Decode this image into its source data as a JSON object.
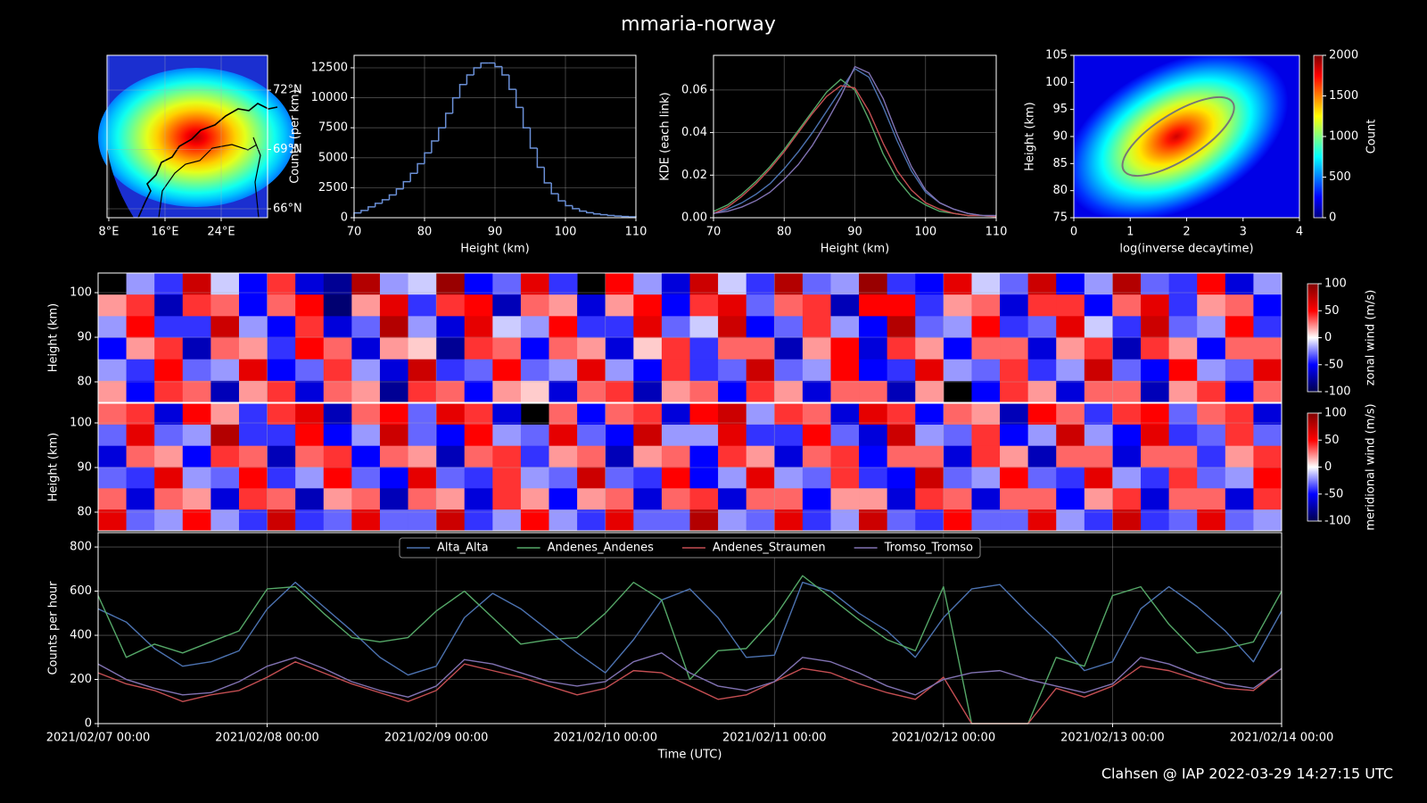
{
  "title": "mmaria-norway",
  "footer": "Clahsen @ IAP 2022-03-29 14:27:15 UTC",
  "chart_data": [
    {
      "type": "map",
      "xlim": [
        7.75,
        30.6
      ],
      "ylim": [
        65.55,
        73.76
      ],
      "grid": true,
      "xticks": [
        {
          "value": 8,
          "label": "8°E"
        },
        {
          "value": 16,
          "label": "16°E"
        },
        {
          "value": 24,
          "label": "24°E"
        }
      ],
      "yticks": [
        {
          "value": 72,
          "label": "72°N"
        },
        {
          "value": 69,
          "label": "69°N"
        },
        {
          "value": 66,
          "label": "66°N"
        }
      ]
    },
    {
      "type": "histogram",
      "xlabel": "Height (km)",
      "ylabel": "Counts (per km)",
      "color": "#6a8fd6",
      "grid": true,
      "bins": [
        70,
        71,
        72,
        73,
        74,
        75,
        76,
        77,
        78,
        79,
        80,
        81,
        82,
        83,
        84,
        85,
        86,
        87,
        88,
        89,
        90,
        91,
        92,
        93,
        94,
        95,
        96,
        97,
        98,
        99,
        100,
        101,
        102,
        103,
        104,
        105,
        106,
        107,
        108,
        109,
        110
      ],
      "values": [
        400,
        600,
        900,
        1200,
        1500,
        1900,
        2400,
        3000,
        3700,
        4500,
        5400,
        6400,
        7500,
        8700,
        10000,
        11100,
        11900,
        12500,
        12900,
        12900,
        12600,
        11900,
        10700,
        9200,
        7500,
        5800,
        4200,
        2900,
        2000,
        1400,
        1000,
        750,
        550,
        420,
        320,
        250,
        190,
        140,
        100,
        70
      ],
      "xlim": [
        70,
        110
      ],
      "xticks": [
        70,
        80,
        90,
        100,
        110
      ],
      "ylim": [
        0,
        13540
      ],
      "yticks": [
        0,
        2500,
        5000,
        7500,
        10000,
        12500
      ]
    },
    {
      "type": "line",
      "xlabel": "Height (km)",
      "ylabel": "KDE (each link)",
      "grid": true,
      "x": [
        70,
        72,
        74,
        76,
        78,
        80,
        82,
        84,
        86,
        88,
        90,
        92,
        94,
        96,
        98,
        100,
        102,
        104,
        106,
        108,
        110
      ],
      "series": [
        {
          "color": "#4c72b0",
          "values": [
            0.002,
            0.004,
            0.007,
            0.011,
            0.016,
            0.023,
            0.031,
            0.04,
            0.05,
            0.06,
            0.07,
            0.066,
            0.052,
            0.036,
            0.022,
            0.012,
            0.007,
            0.004,
            0.002,
            0.001,
            0.001
          ]
        },
        {
          "color": "#55a868",
          "values": [
            0.003,
            0.006,
            0.011,
            0.017,
            0.024,
            0.032,
            0.041,
            0.05,
            0.059,
            0.065,
            0.06,
            0.046,
            0.03,
            0.018,
            0.01,
            0.006,
            0.003,
            0.002,
            0.001,
            0.001,
            0.0005
          ]
        },
        {
          "color": "#c44e52",
          "values": [
            0.002,
            0.005,
            0.01,
            0.016,
            0.023,
            0.031,
            0.04,
            0.049,
            0.057,
            0.062,
            0.061,
            0.05,
            0.035,
            0.022,
            0.013,
            0.007,
            0.004,
            0.002,
            0.001,
            0.001,
            0.0005
          ]
        },
        {
          "color": "#8172b2",
          "values": [
            0.002,
            0.003,
            0.005,
            0.008,
            0.012,
            0.018,
            0.025,
            0.034,
            0.045,
            0.057,
            0.071,
            0.068,
            0.056,
            0.039,
            0.024,
            0.013,
            0.007,
            0.004,
            0.002,
            0.001,
            0.001
          ]
        }
      ],
      "xlim": [
        70,
        110
      ],
      "xticks": [
        70,
        80,
        90,
        100,
        110
      ],
      "ylim": [
        0,
        0.0763
      ],
      "yticks": [
        {
          "value": 0,
          "label": "0.00"
        },
        0.02,
        0.04,
        0.06
      ]
    },
    {
      "type": "hist2d",
      "xlabel": "log(inverse decaytime)",
      "ylabel": "Height (km)",
      "xlim": [
        0,
        4
      ],
      "xticks": [
        0,
        1,
        2,
        3,
        4
      ],
      "ylim": [
        75,
        105
      ],
      "yticks": [
        75,
        80,
        85,
        90,
        95,
        100,
        105
      ],
      "colorbar": {
        "label": "Count",
        "cmap": "jet",
        "lim": [
          0,
          2000
        ],
        "ticks": [
          0,
          500,
          1000,
          1500,
          2000
        ]
      }
    },
    {
      "type": "heatmap",
      "ylabel": "Height (km)",
      "grid": true,
      "xlim": [
        "2021/02/07 00:00",
        "2021/02/14 00:00"
      ],
      "ylim": [
        75.4,
        104.4
      ],
      "yticks": [
        80,
        90,
        100
      ],
      "colorbar": {
        "label": "zonal wind (m/s)",
        "cmap": "seismic",
        "lim": [
          -100,
          100
        ],
        "ticks": [
          -100,
          -50,
          0,
          50,
          100
        ]
      },
      "values": [
        [
          null,
          -20,
          -40,
          70,
          -10,
          -50,
          40,
          -60,
          -80,
          80,
          -20,
          -10,
          90,
          -50,
          -30,
          60,
          -40,
          null,
          50,
          -20,
          -60,
          70,
          -10,
          -40,
          80,
          -30,
          -20,
          90,
          -40,
          -50,
          60,
          -10,
          -30,
          70,
          -50,
          -20,
          80,
          -30,
          -40,
          50,
          -60,
          -20
        ],
        [
          20,
          40,
          -70,
          40,
          30,
          -50,
          30,
          50,
          -90,
          20,
          60,
          -40,
          40,
          50,
          -70,
          30,
          20,
          -60,
          20,
          50,
          -50,
          40,
          60,
          -30,
          30,
          40,
          -70,
          50,
          50,
          -40,
          20,
          30,
          -60,
          40,
          40,
          -50,
          30,
          60,
          -40,
          20,
          30,
          -50
        ],
        [
          -20,
          50,
          -40,
          -40,
          70,
          -20,
          -50,
          40,
          -60,
          -30,
          80,
          -20,
          -60,
          60,
          -10,
          -20,
          50,
          -40,
          -40,
          60,
          -30,
          -10,
          70,
          -50,
          -30,
          40,
          -20,
          -50,
          80,
          -30,
          -20,
          50,
          -40,
          -30,
          60,
          -10,
          -40,
          70,
          -30,
          -20,
          50,
          -40
        ],
        [
          -50,
          20,
          40,
          -70,
          30,
          20,
          -40,
          50,
          30,
          -60,
          20,
          10,
          -80,
          40,
          30,
          -50,
          30,
          20,
          -60,
          10,
          40,
          -40,
          30,
          30,
          -70,
          20,
          50,
          -60,
          40,
          20,
          -50,
          30,
          30,
          -60,
          20,
          40,
          -70,
          40,
          20,
          -50,
          30,
          30
        ],
        [
          -20,
          -40,
          50,
          -30,
          -20,
          60,
          -50,
          -30,
          40,
          -20,
          -60,
          70,
          -40,
          -30,
          50,
          -30,
          -20,
          60,
          -20,
          -50,
          40,
          -40,
          -30,
          70,
          -30,
          -20,
          50,
          -50,
          -40,
          60,
          -20,
          -30,
          40,
          -40,
          -20,
          70,
          -30,
          -50,
          50,
          -20,
          -30,
          60
        ],
        [
          20,
          -50,
          40,
          30,
          -70,
          20,
          40,
          -60,
          30,
          20,
          -80,
          40,
          30,
          -50,
          20,
          10,
          -60,
          30,
          40,
          -70,
          20,
          30,
          -50,
          40,
          20,
          -60,
          30,
          30,
          -70,
          20,
          null,
          -50,
          40,
          20,
          -60,
          30,
          30,
          -70,
          20,
          40,
          -50,
          30
        ]
      ]
    },
    {
      "type": "heatmap",
      "ylabel": "Height (km)",
      "grid": true,
      "xlim": [
        "2021/02/07 00:00",
        "2021/02/14 00:00"
      ],
      "ylim": [
        75.8,
        104.4
      ],
      "yticks": [
        80,
        90,
        100
      ],
      "colorbar": {
        "label": "meridional wind (m/s)",
        "cmap": "seismic",
        "lim": [
          -100,
          100
        ],
        "ticks": [
          -100,
          -50,
          0,
          50,
          100
        ]
      },
      "values": [
        [
          30,
          40,
          -60,
          50,
          20,
          -40,
          40,
          60,
          -70,
          30,
          50,
          -30,
          60,
          40,
          -60,
          null,
          30,
          -50,
          30,
          40,
          -60,
          50,
          70,
          -20,
          40,
          30,
          -60,
          60,
          40,
          -50,
          30,
          20,
          -70,
          50,
          30,
          -40,
          40,
          50,
          -30,
          30,
          40,
          -60
        ],
        [
          -30,
          60,
          -30,
          -20,
          80,
          -40,
          -40,
          50,
          -50,
          -20,
          70,
          -30,
          -50,
          50,
          -20,
          -30,
          60,
          -30,
          -50,
          70,
          -20,
          -20,
          60,
          -40,
          -40,
          50,
          -30,
          -60,
          70,
          -20,
          -30,
          40,
          -50,
          -20,
          70,
          -20,
          -50,
          60,
          -40,
          -30,
          40,
          -30
        ],
        [
          -60,
          30,
          20,
          -50,
          40,
          30,
          -70,
          30,
          40,
          -50,
          30,
          20,
          -70,
          30,
          40,
          -40,
          20,
          30,
          -70,
          20,
          30,
          -50,
          40,
          20,
          -60,
          30,
          40,
          -50,
          30,
          30,
          -60,
          40,
          20,
          -70,
          30,
          30,
          -60,
          30,
          30,
          -40,
          20,
          40
        ],
        [
          -30,
          -40,
          60,
          -20,
          -30,
          50,
          -40,
          -20,
          50,
          -30,
          -50,
          60,
          -30,
          -40,
          40,
          -20,
          -30,
          70,
          -30,
          -40,
          50,
          -50,
          -20,
          60,
          -20,
          -30,
          40,
          -40,
          -50,
          70,
          -30,
          -20,
          50,
          -30,
          -40,
          60,
          -20,
          -40,
          40,
          -30,
          -20,
          50
        ],
        [
          30,
          -60,
          30,
          20,
          -60,
          40,
          30,
          -70,
          20,
          30,
          -70,
          30,
          20,
          -60,
          40,
          20,
          -50,
          20,
          30,
          -60,
          30,
          40,
          -60,
          30,
          30,
          -50,
          20,
          20,
          -60,
          40,
          30,
          -60,
          30,
          30,
          -50,
          20,
          40,
          -60,
          30,
          30,
          -60,
          40
        ],
        [
          60,
          -30,
          -20,
          50,
          -20,
          -40,
          70,
          -40,
          -30,
          60,
          -30,
          -30,
          70,
          -40,
          -20,
          50,
          -20,
          -40,
          60,
          -30,
          -30,
          80,
          -20,
          -30,
          60,
          -40,
          -20,
          70,
          -30,
          -40,
          50,
          -30,
          -30,
          60,
          -20,
          -40,
          70,
          -40,
          -30,
          60,
          -30,
          -20
        ]
      ]
    },
    {
      "type": "line",
      "xlabel": "Time (UTC)",
      "ylabel": "Counts per hour",
      "grid": true,
      "legend": "upper center",
      "x": [
        "2021/02/07 00:00",
        "2021/02/07 04:00",
        "2021/02/07 08:00",
        "2021/02/07 12:00",
        "2021/02/07 16:00",
        "2021/02/07 20:00",
        "2021/02/08 00:00",
        "2021/02/08 04:00",
        "2021/02/08 08:00",
        "2021/02/08 12:00",
        "2021/02/08 16:00",
        "2021/02/08 20:00",
        "2021/02/09 00:00",
        "2021/02/09 04:00",
        "2021/02/09 08:00",
        "2021/02/09 12:00",
        "2021/02/09 16:00",
        "2021/02/09 20:00",
        "2021/02/10 00:00",
        "2021/02/10 04:00",
        "2021/02/10 08:00",
        "2021/02/10 12:00",
        "2021/02/10 16:00",
        "2021/02/10 20:00",
        "2021/02/11 00:00",
        "2021/02/11 04:00",
        "2021/02/11 08:00",
        "2021/02/11 12:00",
        "2021/02/11 16:00",
        "2021/02/11 20:00",
        "2021/02/12 00:00",
        "2021/02/12 04:00",
        "2021/02/12 08:00",
        "2021/02/12 12:00",
        "2021/02/12 16:00",
        "2021/02/12 20:00",
        "2021/02/13 00:00",
        "2021/02/13 04:00",
        "2021/02/13 08:00",
        "2021/02/13 12:00",
        "2021/02/13 16:00",
        "2021/02/13 20:00",
        "2021/02/14 00:00"
      ],
      "series": [
        {
          "name": "Alta_Alta",
          "color": "#4c72b0",
          "values": [
            520,
            460,
            340,
            260,
            280,
            330,
            520,
            640,
            530,
            420,
            300,
            220,
            260,
            480,
            590,
            520,
            420,
            320,
            230,
            380,
            560,
            610,
            480,
            300,
            310,
            640,
            600,
            500,
            420,
            300,
            480,
            610,
            630,
            500,
            380,
            240,
            280,
            520,
            620,
            530,
            420,
            280,
            510
          ]
        },
        {
          "name": "Andenes_Andenes",
          "color": "#55a868",
          "values": [
            580,
            300,
            360,
            320,
            370,
            420,
            610,
            620,
            500,
            390,
            370,
            390,
            510,
            600,
            480,
            360,
            380,
            390,
            500,
            640,
            560,
            200,
            330,
            340,
            480,
            670,
            570,
            470,
            380,
            330,
            620,
            0,
            0,
            0,
            300,
            260,
            580,
            620,
            450,
            320,
            340,
            370,
            600
          ]
        },
        {
          "name": "Andenes_Straumen",
          "color": "#c44e52",
          "values": [
            230,
            180,
            150,
            100,
            130,
            150,
            210,
            280,
            230,
            180,
            140,
            100,
            150,
            270,
            240,
            210,
            170,
            130,
            160,
            240,
            230,
            170,
            110,
            130,
            190,
            250,
            230,
            180,
            140,
            110,
            210,
            0,
            0,
            0,
            160,
            120,
            170,
            260,
            240,
            200,
            160,
            150,
            250
          ]
        },
        {
          "name": "Tromso_Tromso",
          "color": "#8172b2",
          "values": [
            270,
            200,
            160,
            130,
            140,
            190,
            260,
            300,
            250,
            190,
            150,
            120,
            170,
            290,
            270,
            230,
            190,
            170,
            190,
            280,
            320,
            230,
            170,
            150,
            190,
            300,
            280,
            230,
            170,
            130,
            200,
            230,
            240,
            200,
            170,
            140,
            180,
            300,
            270,
            220,
            180,
            160,
            250
          ]
        }
      ],
      "xlim": [
        "2021/02/07 00:00",
        "2021/02/14 00:00"
      ],
      "xticks": [
        "2021/02/07 00:00",
        "2021/02/08 00:00",
        "2021/02/09 00:00",
        "2021/02/10 00:00",
        "2021/02/11 00:00",
        "2021/02/12 00:00",
        "2021/02/13 00:00",
        "2021/02/14 00:00"
      ],
      "ylim": [
        0,
        865
      ],
      "yticks": [
        0,
        200,
        400,
        600,
        800
      ]
    }
  ]
}
